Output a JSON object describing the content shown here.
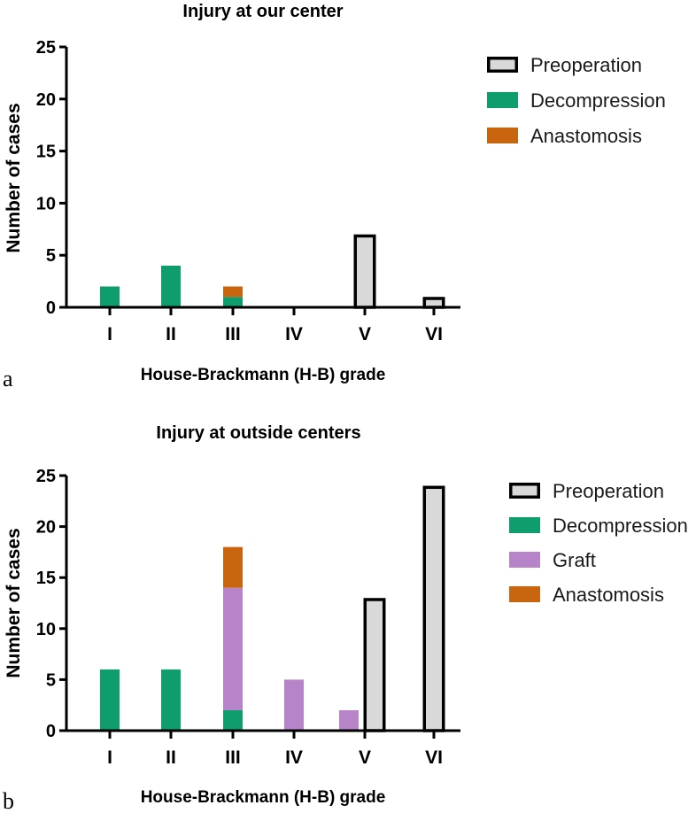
{
  "chart_data": [
    {
      "type": "bar",
      "panel": "a",
      "title": "Injury at our center",
      "xlabel": "House-Brackmann (H-B) grade",
      "ylabel": "Number of cases",
      "ylim": [
        0,
        25
      ],
      "yticks": [
        0,
        5,
        10,
        15,
        20,
        25
      ],
      "categories": [
        "I",
        "II",
        "III",
        "IV",
        "V",
        "VI"
      ],
      "series": [
        {
          "name": "Preoperation",
          "color": "#d9d9d9",
          "values": [
            0,
            0,
            0,
            0,
            7,
            1
          ]
        },
        {
          "name": "Decompression",
          "color": "#0f9d6e",
          "values": [
            2,
            4,
            1,
            0,
            0,
            0
          ]
        },
        {
          "name": "Anastomosis",
          "color": "#c9650f",
          "values": [
            0,
            0,
            1,
            0,
            0,
            0
          ]
        }
      ],
      "legend": "right"
    },
    {
      "type": "bar",
      "panel": "b",
      "title": "Injury at outside centers",
      "xlabel": "House-Brackmann (H-B) grade",
      "ylabel": "Number of cases",
      "ylim": [
        0,
        25
      ],
      "yticks": [
        0,
        5,
        10,
        15,
        20,
        25
      ],
      "categories": [
        "I",
        "II",
        "III",
        "IV",
        "V",
        "VI"
      ],
      "series": [
        {
          "name": "Preoperation",
          "color": "#d9d9d9",
          "values": [
            0,
            0,
            0,
            0,
            13,
            24
          ]
        },
        {
          "name": "Decompression",
          "color": "#0f9d6e",
          "values": [
            6,
            6,
            2,
            0,
            0,
            0
          ]
        },
        {
          "name": "Graft",
          "color": "#b784c9",
          "values": [
            0,
            0,
            12,
            5,
            2,
            0
          ]
        },
        {
          "name": "Anastomosis",
          "color": "#c9650f",
          "values": [
            0,
            0,
            4,
            0,
            0,
            0
          ]
        }
      ],
      "legend": "right"
    }
  ]
}
